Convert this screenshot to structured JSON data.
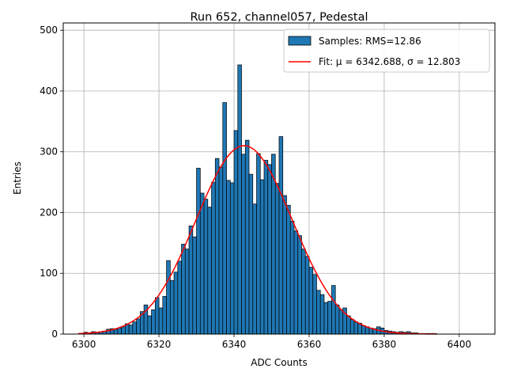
{
  "chart_data": {
    "type": "bar",
    "title": "Run 652, channel057, Pedestal",
    "xlabel": "ADC Counts",
    "ylabel": "Entries",
    "xlim": [
      6294.5,
      6409.5
    ],
    "ylim": [
      0,
      512
    ],
    "xticks": [
      6300,
      6320,
      6340,
      6360,
      6380,
      6400
    ],
    "yticks": [
      0,
      100,
      200,
      300,
      400,
      500
    ],
    "grid": true,
    "legend_position": "top-right",
    "bin_width": 1,
    "histogram": {
      "name": "Samples: RMS=12.86",
      "color": "#1f77b4",
      "x": [
        6299,
        6300,
        6301,
        6302,
        6303,
        6304,
        6305,
        6306,
        6307,
        6308,
        6309,
        6310,
        6311,
        6312,
        6313,
        6314,
        6315,
        6316,
        6317,
        6318,
        6319,
        6320,
        6321,
        6322,
        6323,
        6324,
        6325,
        6326,
        6327,
        6328,
        6329,
        6330,
        6331,
        6332,
        6333,
        6334,
        6335,
        6336,
        6337,
        6338,
        6339,
        6340,
        6341,
        6342,
        6343,
        6344,
        6345,
        6346,
        6347,
        6348,
        6349,
        6350,
        6351,
        6352,
        6353,
        6354,
        6355,
        6356,
        6357,
        6358,
        6359,
        6360,
        6361,
        6362,
        6363,
        6364,
        6365,
        6366,
        6367,
        6368,
        6369,
        6370,
        6371,
        6372,
        6373,
        6374,
        6375,
        6376,
        6377,
        6378,
        6379,
        6380,
        6381,
        6382,
        6383,
        6384,
        6385,
        6386,
        6387,
        6388,
        6389,
        6390,
        6391,
        6392,
        6393
      ],
      "values": [
        1,
        3,
        2,
        4,
        3,
        4,
        5,
        8,
        9,
        8,
        10,
        12,
        17,
        15,
        20,
        25,
        37,
        48,
        30,
        40,
        60,
        43,
        62,
        121,
        88,
        102,
        120,
        148,
        140,
        178,
        160,
        273,
        232,
        222,
        209,
        250,
        289,
        275,
        381,
        253,
        249,
        335,
        443,
        296,
        319,
        263,
        214,
        297,
        254,
        286,
        279,
        296,
        248,
        325,
        228,
        212,
        186,
        170,
        162,
        140,
        128,
        110,
        98,
        72,
        65,
        52,
        54,
        80,
        48,
        40,
        43,
        30,
        24,
        20,
        18,
        14,
        12,
        10,
        9,
        12,
        10,
        6,
        5,
        4,
        3,
        4,
        3,
        4,
        2,
        2,
        1,
        1,
        1,
        1,
        1
      ]
    },
    "fit": {
      "name": "Fit: μ = 6342.688, σ = 12.803",
      "color": "#ff0000",
      "mu": 6342.688,
      "sigma": 12.803,
      "amplitude": 310,
      "x_range": [
        6298.5,
        6394
      ]
    }
  }
}
